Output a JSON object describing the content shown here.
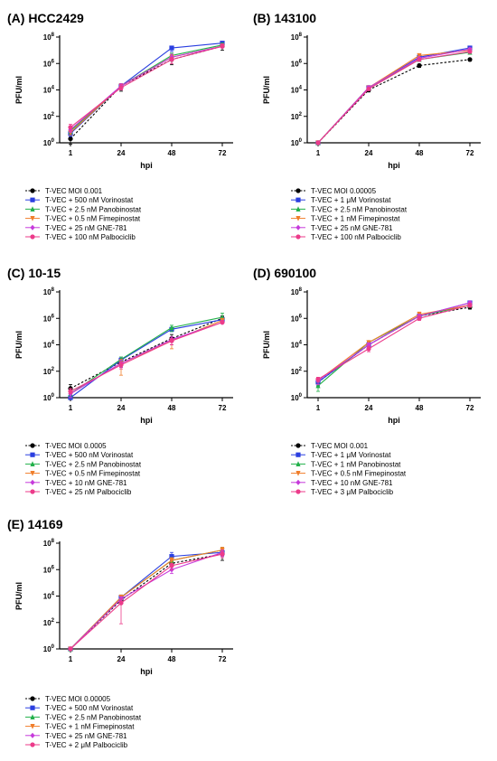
{
  "chart_data": [
    {
      "type": "line",
      "title": "(A) HCC2429",
      "xlabel": "hpi",
      "ylabel": "PFU/ml",
      "y_scale": "log10",
      "ylim": [
        1,
        100000000
      ],
      "y_tick_labels": [
        "10^0",
        "10^2",
        "10^4",
        "10^6",
        "10^8"
      ],
      "x": [
        1,
        24,
        48,
        72
      ],
      "legend_placement": "below",
      "series": [
        {
          "name": "T-VEC MOI 0.001",
          "color": "#000000",
          "marker": "circle",
          "dashed": true,
          "values": [
            2,
            20000,
            2000000,
            20000000
          ],
          "err_lo": [
            0.8,
            8000,
            800000,
            10000000
          ],
          "err_hi": [
            5,
            30000,
            4000000,
            30000000
          ]
        },
        {
          "name": "T-VEC + 500 nM Vorinostat",
          "color": "#2b3fe0",
          "marker": "square",
          "dashed": false,
          "values": [
            5,
            20000,
            15000000,
            35000000
          ],
          "err_lo": [
            3,
            15000,
            8000000,
            25000000
          ],
          "err_hi": [
            10,
            30000,
            20000000,
            45000000
          ]
        },
        {
          "name": "T-VEC + 2.5 nM Panobinostat",
          "color": "#22b04a",
          "marker": "triangle-up",
          "dashed": false,
          "values": [
            8,
            20000,
            4000000,
            25000000
          ],
          "err_lo": [
            5,
            10000,
            2000000,
            15000000
          ],
          "err_hi": [
            12,
            30000,
            6000000,
            35000000
          ]
        },
        {
          "name": "T-VEC + 0.5 nM Fimepinostat",
          "color": "#f07d2a",
          "marker": "triangle-down",
          "dashed": false,
          "values": [
            6,
            20000,
            3000000,
            20000000
          ],
          "err_lo": [
            4,
            10000,
            2000000,
            15000000
          ],
          "err_hi": [
            9,
            30000,
            5000000,
            30000000
          ]
        },
        {
          "name": "T-VEC + 25 nM GNE-781",
          "color": "#c63adb",
          "marker": "diamond",
          "dashed": false,
          "values": [
            10,
            20000,
            3000000,
            20000000
          ],
          "err_lo": [
            6,
            10000,
            2000000,
            15000000
          ],
          "err_hi": [
            15,
            30000,
            5000000,
            30000000
          ]
        },
        {
          "name": "T-VEC + 100 nM Palbociclib",
          "color": "#ec3b8a",
          "marker": "circle",
          "dashed": false,
          "values": [
            15,
            15000,
            2000000,
            20000000
          ],
          "err_lo": [
            8,
            10000,
            1000000,
            15000000
          ],
          "err_hi": [
            25,
            25000,
            3000000,
            30000000
          ]
        }
      ]
    },
    {
      "type": "line",
      "title": "(B) 143100",
      "xlabel": "hpi",
      "ylabel": "PFU/ml",
      "y_scale": "log10",
      "ylim": [
        1,
        100000000
      ],
      "y_tick_labels": [
        "10^0",
        "10^2",
        "10^4",
        "10^6",
        "10^8"
      ],
      "x": [
        1,
        24,
        48,
        72
      ],
      "legend_placement": "below",
      "series": [
        {
          "name": "T-VEC MOI 0.00005",
          "color": "#000000",
          "marker": "circle",
          "dashed": true,
          "values": [
            1,
            10000,
            700000,
            2000000
          ],
          "err_lo": [
            0.8,
            7000,
            500000,
            1500000
          ],
          "err_hi": [
            1.2,
            14000,
            900000,
            2500000
          ]
        },
        {
          "name": "T-VEC + 1 μM Vorinostat",
          "color": "#2b3fe0",
          "marker": "square",
          "dashed": false,
          "values": [
            1,
            15000,
            3000000,
            15000000
          ],
          "err_lo": [
            0.8,
            10000,
            2000000,
            10000000
          ],
          "err_hi": [
            1.2,
            20000,
            4000000,
            20000000
          ]
        },
        {
          "name": "T-VEC + 2.5 nM Panobinostat",
          "color": "#22b04a",
          "marker": "triangle-up",
          "dashed": false,
          "values": [
            1,
            15000,
            2000000,
            7000000
          ],
          "err_lo": [
            0.8,
            10000,
            1500000,
            5000000
          ],
          "err_hi": [
            1.2,
            20000,
            3000000,
            9000000
          ]
        },
        {
          "name": "T-VEC + 1 nM Fimepinostat",
          "color": "#f07d2a",
          "marker": "triangle-down",
          "dashed": false,
          "values": [
            1,
            15000,
            4000000,
            10000000
          ],
          "err_lo": [
            0.8,
            10000,
            3000000,
            7000000
          ],
          "err_hi": [
            1.2,
            20000,
            5000000,
            13000000
          ]
        },
        {
          "name": "T-VEC + 25 nM GNE-781",
          "color": "#c63adb",
          "marker": "diamond",
          "dashed": false,
          "values": [
            1,
            15000,
            2500000,
            12000000
          ],
          "err_lo": [
            0.8,
            10000,
            2000000,
            9000000
          ],
          "err_hi": [
            1.2,
            20000,
            3000000,
            15000000
          ]
        },
        {
          "name": "T-VEC + 100 nM Palbociclib",
          "color": "#ec3b8a",
          "marker": "circle",
          "dashed": false,
          "values": [
            1,
            12000,
            2000000,
            8000000
          ],
          "err_lo": [
            0.8,
            9000,
            1500000,
            6000000
          ],
          "err_hi": [
            1.2,
            15000,
            2500000,
            10000000
          ]
        }
      ]
    },
    {
      "type": "line",
      "title": "(C) 10-15",
      "xlabel": "hpi",
      "ylabel": "PFU/ml",
      "y_scale": "log10",
      "ylim": [
        1,
        100000000
      ],
      "y_tick_labels": [
        "10^0",
        "10^2",
        "10^4",
        "10^6",
        "10^8"
      ],
      "x": [
        1,
        24,
        48,
        72
      ],
      "legend_placement": "below",
      "series": [
        {
          "name": "T-VEC MOI 0.0005",
          "color": "#000000",
          "marker": "circle",
          "dashed": true,
          "values": [
            5,
            500,
            30000,
            1000000
          ],
          "err_lo": [
            2,
            200,
            10000,
            600000
          ],
          "err_hi": [
            10,
            800,
            60000,
            1500000
          ]
        },
        {
          "name": "T-VEC + 500 nM Vorinostat",
          "color": "#2b3fe0",
          "marker": "square",
          "dashed": false,
          "values": [
            1,
            700,
            150000,
            800000
          ],
          "err_lo": [
            0.8,
            500,
            100000,
            600000
          ],
          "err_hi": [
            1.5,
            1000,
            200000,
            1200000
          ]
        },
        {
          "name": "T-VEC + 2.5 nM Panobinostat",
          "color": "#22b04a",
          "marker": "triangle-up",
          "dashed": false,
          "values": [
            2,
            800,
            200000,
            1200000
          ],
          "err_lo": [
            1,
            500,
            100000,
            800000
          ],
          "err_hi": [
            3,
            1200,
            300000,
            2500000
          ]
        },
        {
          "name": "T-VEC + 0.5 nM Fimepinostat",
          "color": "#f07d2a",
          "marker": "triangle-down",
          "dashed": false,
          "values": [
            2,
            400,
            20000,
            700000
          ],
          "err_lo": [
            1,
            50,
            5000,
            500000
          ],
          "err_hi": [
            3,
            800,
            40000,
            1000000
          ]
        },
        {
          "name": "T-VEC + 10 nM GNE-781",
          "color": "#c63adb",
          "marker": "diamond",
          "dashed": false,
          "values": [
            2,
            400,
            25000,
            500000
          ],
          "err_lo": [
            1,
            200,
            10000,
            400000
          ],
          "err_hi": [
            3,
            700,
            40000,
            700000
          ]
        },
        {
          "name": "T-VEC + 25 nM Palbociclib",
          "color": "#ec3b8a",
          "marker": "circle",
          "dashed": false,
          "values": [
            3,
            300,
            20000,
            500000
          ],
          "err_lo": [
            2,
            150,
            10000,
            400000
          ],
          "err_hi": [
            5,
            500,
            30000,
            700000
          ]
        }
      ]
    },
    {
      "type": "line",
      "title": "(D) 690100",
      "xlabel": "hpi",
      "ylabel": "PFU/ml",
      "y_scale": "log10",
      "ylim": [
        1,
        100000000
      ],
      "y_tick_labels": [
        "10^0",
        "10^2",
        "10^4",
        "10^6",
        "10^8"
      ],
      "x": [
        1,
        24,
        48,
        72
      ],
      "legend_placement": "below",
      "series": [
        {
          "name": "T-VEC MOI 0.001",
          "color": "#000000",
          "marker": "circle",
          "dashed": true,
          "values": [
            15,
            10000,
            1500000,
            7000000
          ],
          "err_lo": [
            8,
            6000,
            1000000,
            5000000
          ],
          "err_hi": [
            25,
            15000,
            2000000,
            9000000
          ]
        },
        {
          "name": "T-VEC + 1 μM Vorinostat",
          "color": "#2b3fe0",
          "marker": "square",
          "dashed": false,
          "values": [
            15,
            10000,
            1500000,
            15000000
          ],
          "err_lo": [
            8,
            7000,
            1000000,
            10000000
          ],
          "err_hi": [
            25,
            14000,
            2000000,
            20000000
          ]
        },
        {
          "name": "T-VEC + 1 nM Panobinostat",
          "color": "#22b04a",
          "marker": "triangle-up",
          "dashed": false,
          "values": [
            8,
            15000,
            1500000,
            10000000
          ],
          "err_lo": [
            3,
            10000,
            1000000,
            7000000
          ],
          "err_hi": [
            15,
            20000,
            2000000,
            13000000
          ]
        },
        {
          "name": "T-VEC + 0.5 nM Fimepinostat",
          "color": "#f07d2a",
          "marker": "triangle-down",
          "dashed": false,
          "values": [
            20,
            15000,
            2000000,
            10000000
          ],
          "err_lo": [
            10,
            10000,
            1500000,
            7000000
          ],
          "err_hi": [
            30,
            20000,
            3000000,
            13000000
          ]
        },
        {
          "name": "T-VEC + 10 nM GNE-781",
          "color": "#c63adb",
          "marker": "diamond",
          "dashed": false,
          "values": [
            20,
            10000,
            1500000,
            15000000
          ],
          "err_lo": [
            10,
            7000,
            1000000,
            10000000
          ],
          "err_hi": [
            30,
            14000,
            2000000,
            20000000
          ]
        },
        {
          "name": "T-VEC + 3 μM Palbociclib",
          "color": "#ec3b8a",
          "marker": "circle",
          "dashed": false,
          "values": [
            25,
            5000,
            1000000,
            10000000
          ],
          "err_lo": [
            15,
            3000,
            700000,
            7000000
          ],
          "err_hi": [
            35,
            8000,
            1500000,
            13000000
          ]
        }
      ]
    },
    {
      "type": "line",
      "title": "(E) 14169",
      "xlabel": "hpi",
      "ylabel": "PFU/ml",
      "y_scale": "log10",
      "ylim": [
        1,
        100000000
      ],
      "y_tick_labels": [
        "10^0",
        "10^2",
        "10^4",
        "10^6",
        "10^8"
      ],
      "x": [
        1,
        24,
        48,
        72
      ],
      "legend_placement": "below",
      "series": [
        {
          "name": "T-VEC MOI 0.00005",
          "color": "#000000",
          "marker": "circle",
          "dashed": true,
          "values": [
            1,
            5000,
            3000000,
            15000000
          ],
          "err_lo": [
            0.8,
            3000,
            2000000,
            5000000
          ],
          "err_hi": [
            1.2,
            8000,
            5000000,
            30000000
          ]
        },
        {
          "name": "T-VEC + 500 nM Vorinostat",
          "color": "#2b3fe0",
          "marker": "square",
          "dashed": false,
          "values": [
            1,
            8000,
            10000000,
            20000000
          ],
          "err_lo": [
            0.8,
            5000,
            5000000,
            10000000
          ],
          "err_hi": [
            1.2,
            12000,
            20000000,
            40000000
          ]
        },
        {
          "name": "T-VEC + 2.5 nM Panobinostat",
          "color": "#22b04a",
          "marker": "triangle-up",
          "dashed": false,
          "values": [
            1,
            8000,
            5000000,
            30000000
          ],
          "err_lo": [
            0.8,
            5000,
            3000000,
            15000000
          ],
          "err_hi": [
            1.2,
            12000,
            8000000,
            50000000
          ]
        },
        {
          "name": "T-VEC + 1 nM Fimepinostat",
          "color": "#f07d2a",
          "marker": "triangle-down",
          "dashed": false,
          "values": [
            1,
            8000,
            5000000,
            30000000
          ],
          "err_lo": [
            0.8,
            5000,
            3000000,
            15000000
          ],
          "err_hi": [
            1.2,
            12000,
            8000000,
            50000000
          ]
        },
        {
          "name": "T-VEC + 25 nM GNE-781",
          "color": "#c63adb",
          "marker": "diamond",
          "dashed": false,
          "values": [
            1,
            6000,
            1000000,
            20000000
          ],
          "err_lo": [
            0.8,
            4000,
            500000,
            10000000
          ],
          "err_hi": [
            1.2,
            9000,
            2000000,
            30000000
          ]
        },
        {
          "name": "T-VEC + 2 μM Palbociclib",
          "color": "#ec3b8a",
          "marker": "circle",
          "dashed": false,
          "values": [
            1,
            3000,
            2000000,
            15000000
          ],
          "err_lo": [
            0.8,
            80,
            1000000,
            8000000
          ],
          "err_hi": [
            1.2,
            6000,
            3000000,
            25000000
          ]
        }
      ]
    }
  ]
}
